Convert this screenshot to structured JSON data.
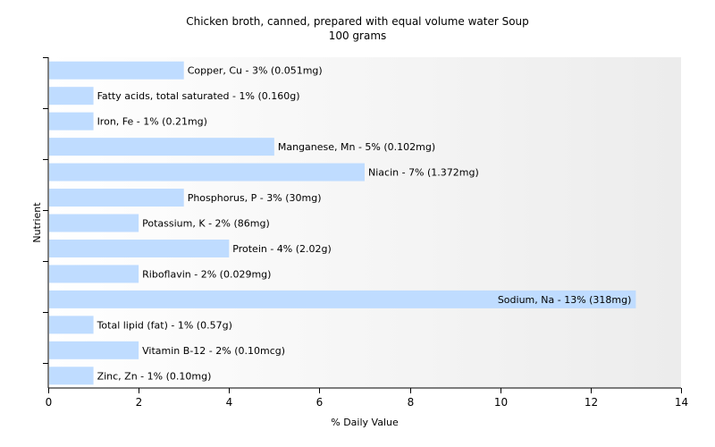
{
  "chart_data": {
    "type": "bar",
    "orientation": "horizontal",
    "title": "Chicken broth, canned, prepared with equal volume water Soup",
    "subtitle": "100 grams",
    "xlabel": "% Daily Value",
    "ylabel": "Nutrient",
    "xlim": [
      0,
      14
    ],
    "xticks": [
      0,
      2,
      4,
      6,
      8,
      10,
      12,
      14
    ],
    "grid": false,
    "bar_color": "#bfdcff",
    "categories": [
      "Copper, Cu",
      "Fatty acids, total saturated",
      "Iron, Fe",
      "Manganese, Mn",
      "Niacin",
      "Phosphorus, P",
      "Potassium, K",
      "Protein",
      "Riboflavin",
      "Sodium, Na",
      "Total lipid (fat)",
      "Vitamin B-12",
      "Zinc, Zn"
    ],
    "values": [
      3,
      1,
      1,
      5,
      7,
      3,
      2,
      4,
      2,
      13,
      1,
      2,
      1
    ],
    "labels": [
      "Copper, Cu - 3% (0.051mg)",
      "Fatty acids, total saturated - 1% (0.160g)",
      "Iron, Fe - 1% (0.21mg)",
      "Manganese, Mn - 5% (0.102mg)",
      "Niacin - 7% (1.372mg)",
      "Phosphorus, P - 3% (30mg)",
      "Potassium, K - 2% (86mg)",
      "Protein - 4% (2.02g)",
      "Riboflavin - 2% (0.029mg)",
      "Sodium, Na - 13% (318mg)",
      "Total lipid (fat) - 1% (0.57g)",
      "Vitamin B-12 - 2% (0.10mcg)",
      "Zinc, Zn - 1% (0.10mg)"
    ]
  }
}
